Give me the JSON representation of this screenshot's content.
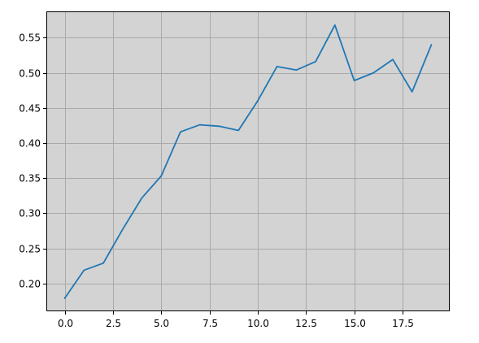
{
  "chart_data": {
    "type": "line",
    "title": "",
    "xlabel": "",
    "ylabel": "",
    "xlim": [
      -0.95,
      19.95
    ],
    "ylim": [
      0.1605,
      0.5875
    ],
    "grid": true,
    "background": "#d3d3d3",
    "grid_color": "#a9a9a9",
    "x_ticks": [
      0.0,
      2.5,
      5.0,
      7.5,
      10.0,
      12.5,
      15.0,
      17.5
    ],
    "x_tick_labels": [
      "0.0",
      "2.5",
      "5.0",
      "7.5",
      "10.0",
      "12.5",
      "15.0",
      "17.5"
    ],
    "y_ticks": [
      0.2,
      0.25,
      0.3,
      0.35,
      0.4,
      0.45,
      0.5,
      0.55
    ],
    "y_tick_labels": [
      "0.20",
      "0.25",
      "0.30",
      "0.35",
      "0.40",
      "0.45",
      "0.50",
      "0.55"
    ],
    "series": [
      {
        "color": "#1f77b4",
        "x": [
          0,
          1,
          2,
          3,
          4,
          5,
          6,
          7,
          8,
          9,
          10,
          11,
          12,
          13,
          14,
          15,
          16,
          17,
          18,
          19
        ],
        "values": [
          0.179,
          0.219,
          0.229,
          0.277,
          0.322,
          0.353,
          0.416,
          0.426,
          0.424,
          0.418,
          0.46,
          0.509,
          0.504,
          0.516,
          0.568,
          0.489,
          0.5,
          0.519,
          0.473,
          0.54
        ]
      }
    ]
  }
}
